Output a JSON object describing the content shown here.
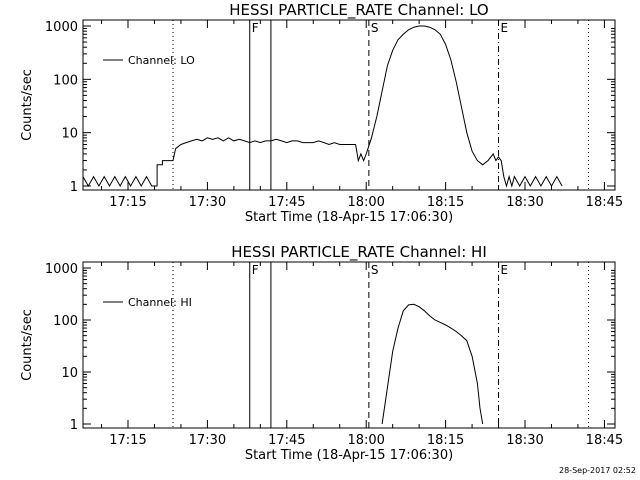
{
  "chart_data": [
    {
      "type": "line",
      "title": "HESSI PARTICLE_RATE Channel: LO",
      "xlabel": "Start Time (18-Apr-15 17:06:30)",
      "ylabel": "Counts/sec",
      "y_scale": "log",
      "ylim": [
        1,
        1000
      ],
      "xlim": [
        "17:06:30",
        "18:47:00"
      ],
      "x_ticks": [
        "17:15",
        "17:30",
        "17:45",
        "18:00",
        "18:15",
        "18:30",
        "18:45"
      ],
      "y_ticks": [
        "1",
        "10",
        "100",
        "1000"
      ],
      "legend": {
        "label": "Channel: LO",
        "position": "top-left"
      },
      "markers": [
        {
          "label": "F",
          "time": "17:38:00",
          "style": "solid"
        },
        {
          "label": "",
          "time": "17:42:00",
          "style": "solid"
        },
        {
          "label": "S",
          "time": "18:00:30",
          "style": "dashed"
        },
        {
          "label": "E",
          "time": "18:25:00",
          "style": "dashdot"
        },
        {
          "label": "",
          "time": "17:23:30",
          "style": "dotted"
        },
        {
          "label": "",
          "time": "18:42:00",
          "style": "dotted"
        }
      ],
      "series": [
        {
          "name": "Channel: LO",
          "x": [
            "17:06:30",
            "17:07:30",
            "17:08:30",
            "17:09:30",
            "17:10:30",
            "17:11:30",
            "17:12:30",
            "17:13:30",
            "17:14:30",
            "17:15:30",
            "17:16:30",
            "17:17:30",
            "17:18:30",
            "17:19:30",
            "17:20:30",
            "17:20:30",
            "17:21:30",
            "17:21:30",
            "17:22:30",
            "17:23:00",
            "17:23:30",
            "17:24:00",
            "17:25:00",
            "17:26:00",
            "17:27:00",
            "17:28:00",
            "17:29:00",
            "17:30:00",
            "17:31:00",
            "17:32:00",
            "17:33:00",
            "17:34:00",
            "17:35:00",
            "17:36:00",
            "17:37:00",
            "17:38:00",
            "17:39:00",
            "17:40:00",
            "17:41:00",
            "17:42:00",
            "17:43:00",
            "17:44:00",
            "17:45:00",
            "17:46:00",
            "17:47:00",
            "17:48:00",
            "17:49:00",
            "17:50:00",
            "17:51:00",
            "17:52:00",
            "17:53:00",
            "17:54:00",
            "17:55:00",
            "17:56:00",
            "17:57:00",
            "17:58:00",
            "17:58:30",
            "17:59:00",
            "17:59:30",
            "18:00:00",
            "18:01:00",
            "18:02:00",
            "18:03:00",
            "18:04:00",
            "18:05:00",
            "18:06:00",
            "18:07:00",
            "18:08:00",
            "18:09:00",
            "18:10:00",
            "18:11:00",
            "18:12:00",
            "18:13:00",
            "18:14:00",
            "18:15:00",
            "18:16:00",
            "18:17:00",
            "18:18:00",
            "18:19:00",
            "18:20:00",
            "18:21:00",
            "18:22:00",
            "18:23:00",
            "18:24:00",
            "18:24:30",
            "18:25:00",
            "18:25:30",
            "18:26:00",
            "18:26:30",
            "18:27:00",
            "18:27:30",
            "18:28:00",
            "18:29:00",
            "18:30:00",
            "18:31:00",
            "18:32:00",
            "18:33:00",
            "18:34:00",
            "18:35:00",
            "18:36:00",
            "18:37:00"
          ],
          "y": [
            1.5,
            1,
            1.5,
            1,
            1.5,
            1,
            1.5,
            1,
            1.5,
            1,
            1.5,
            1,
            1.5,
            1,
            1,
            2.5,
            2.5,
            3,
            3,
            3,
            3,
            5,
            6,
            6.5,
            7,
            7.5,
            7,
            8,
            7.5,
            8,
            7,
            8,
            7,
            7.5,
            7,
            6.5,
            7,
            6.5,
            7,
            7,
            7.5,
            7,
            6.5,
            7,
            7,
            6.5,
            6.5,
            6.5,
            7,
            6.5,
            6,
            6.5,
            6,
            6,
            6,
            6,
            3,
            4,
            3,
            4,
            8,
            20,
            60,
            180,
            350,
            550,
            700,
            850,
            950,
            1000,
            1000,
            950,
            850,
            700,
            450,
            230,
            90,
            30,
            10,
            4.5,
            3,
            2.5,
            3,
            4,
            3,
            3.5,
            3,
            1.5,
            1,
            1.5,
            1,
            1.5,
            1,
            1.5,
            1,
            1.5,
            1,
            1.5,
            1,
            1.5,
            1
          ]
        }
      ]
    },
    {
      "type": "line",
      "title": "HESSI PARTICLE_RATE Channel: HI",
      "xlabel": "Start Time (18-Apr-15 17:06:30)",
      "ylabel": "Counts/sec",
      "y_scale": "log",
      "ylim": [
        1,
        1000
      ],
      "xlim": [
        "17:06:30",
        "18:47:00"
      ],
      "x_ticks": [
        "17:15",
        "17:30",
        "17:45",
        "18:00",
        "18:15",
        "18:30",
        "18:45"
      ],
      "y_ticks": [
        "1",
        "10",
        "100",
        "1000"
      ],
      "legend": {
        "label": "Channel: HI",
        "position": "top-left"
      },
      "markers": [
        {
          "label": "F",
          "time": "17:38:00",
          "style": "solid"
        },
        {
          "label": "",
          "time": "17:42:00",
          "style": "solid"
        },
        {
          "label": "S",
          "time": "18:00:30",
          "style": "dashed"
        },
        {
          "label": "E",
          "time": "18:25:00",
          "style": "dashdot"
        },
        {
          "label": "",
          "time": "17:23:30",
          "style": "dotted"
        },
        {
          "label": "",
          "time": "18:42:00",
          "style": "dotted"
        }
      ],
      "series": [
        {
          "name": "Channel: HI",
          "x": [
            "18:03:00",
            "18:04:00",
            "18:05:00",
            "18:06:00",
            "18:07:00",
            "18:08:00",
            "18:09:00",
            "18:10:00",
            "18:11:00",
            "18:12:00",
            "18:13:00",
            "18:14:00",
            "18:15:00",
            "18:16:00",
            "18:17:00",
            "18:18:00",
            "18:19:00",
            "18:20:00",
            "18:21:00",
            "18:21:30",
            "18:22:00"
          ],
          "y": [
            1,
            5,
            25,
            70,
            150,
            195,
            200,
            180,
            150,
            120,
            100,
            90,
            80,
            70,
            60,
            50,
            40,
            20,
            6,
            2,
            1
          ]
        }
      ]
    }
  ],
  "timestamp": "28-Sep-2017 02:52"
}
